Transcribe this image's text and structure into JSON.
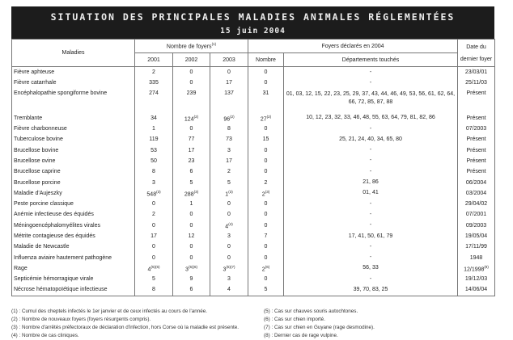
{
  "title": "SITUATION DES PRINCIPALES MALADIES ANIMALES RÉGLEMENTÉES",
  "date": "15 juin 2004",
  "headers": {
    "maladies": "Maladies",
    "nombre_foyers": "Nombre de foyers",
    "nombre_foyers_note": "(1)",
    "foyers_2004": "Foyers déclarés en 2004",
    "date_dernier": "Date du dernier foyer",
    "y2001": "2001",
    "y2002": "2002",
    "y2003": "2003",
    "nombre": "Nombre",
    "departements": "Départements touchés"
  },
  "rows": [
    {
      "name": "Fièvre aphteuse",
      "y2001": "2",
      "y2002": "0",
      "y2003": "0",
      "nombre": "0",
      "deps": "-",
      "date": "23/03/01"
    },
    {
      "name": "Fièvre catarrhale",
      "y2001": "335",
      "y2002": "0",
      "y2003": "17",
      "nombre": "0",
      "deps": "-",
      "date": "25/11/03"
    },
    {
      "name": "Encéphalopathie spongiforme bovine",
      "y2001": "274",
      "y2002": "239",
      "y2003": "137",
      "nombre": "31",
      "deps": "01, 03, 12, 15, 22, 23, 25, 29, 37, 43, 44, 46, 49, 53, 56, 61, 62, 64, 66, 72, 85, 87, 88",
      "date": "Présent"
    },
    {
      "name": "Tremblante",
      "y2001": "34",
      "y2002": "124",
      "y2002_note": "(2)",
      "y2003": "96",
      "y2003_note": "(2)",
      "nombre": "27",
      "nombre_note": "(2)",
      "deps": "10, 12, 23, 32, 33, 46, 48, 55, 63, 64, 79, 81, 82, 86",
      "date": "Présent"
    },
    {
      "name": "Fièvre charbonneuse",
      "y2001": "1",
      "y2002": "0",
      "y2003": "8",
      "nombre": "0",
      "deps": "-",
      "date": "07/2003"
    },
    {
      "name": "Tuberculose bovine",
      "y2001": "119",
      "y2002": "77",
      "y2003": "73",
      "nombre": "15",
      "deps": "25, 21, 24, 40, 34, 65, 80",
      "date": "Présent"
    },
    {
      "name": "Brucellose bovine",
      "y2001": "53",
      "y2002": "17",
      "y2003": "3",
      "nombre": "0",
      "deps": "-",
      "date": "Présent"
    },
    {
      "name": "Brucellose ovine",
      "y2001": "50",
      "y2002": "23",
      "y2003": "17",
      "nombre": "0",
      "deps": "-",
      "date": "Présent"
    },
    {
      "name": "Brucellose caprine",
      "y2001": "8",
      "y2002": "6",
      "y2003": "2",
      "nombre": "0",
      "deps": "-",
      "date": "Présent"
    },
    {
      "name": "Brucellose porcine",
      "y2001": "3",
      "y2002": "5",
      "y2003": "5",
      "nombre": "2",
      "deps": "21, 86",
      "date": "06/2004"
    },
    {
      "name": "Maladie d'Aujeszky",
      "y2001": "548",
      "y2001_note": "(3)",
      "y2002": "288",
      "y2002_note": "(3)",
      "y2003": "1",
      "y2003_note": "(3)",
      "nombre": "2",
      "nombre_note": "(3)",
      "deps": "01, 41",
      "date": "03/2004"
    },
    {
      "name": "Peste porcine classique",
      "y2001": "0",
      "y2002": "1",
      "y2003": "0",
      "nombre": "0",
      "deps": "-",
      "date": "29/04/02"
    },
    {
      "name": "Anémie infectieuse des équidés",
      "y2001": "2",
      "y2002": "0",
      "y2003": "0",
      "nombre": "0",
      "deps": "-",
      "date": "07/2001"
    },
    {
      "name": "Méningoencéphalomyélites virales",
      "y2001": "0",
      "y2002": "0",
      "y2003": "4",
      "y2003_note": "(4)",
      "nombre": "0",
      "deps": "-",
      "date": "09/2003"
    },
    {
      "name": "Métrite contagieuse des équidés",
      "y2001": "17",
      "y2002": "12",
      "y2003": "3",
      "nombre": "7",
      "deps": "17, 41, 50, 61, 79",
      "date": "19/05/04"
    },
    {
      "name": "Maladie de Newcastle",
      "y2001": "0",
      "y2002": "0",
      "y2003": "0",
      "nombre": "0",
      "deps": "-",
      "date": "17/11/99"
    },
    {
      "name": "Influenza aviaire hautement pathogène",
      "y2001": "0",
      "y2002": "0",
      "y2003": "0",
      "nombre": "0",
      "deps": "-",
      "date": "1948"
    },
    {
      "name": "Rage",
      "y2001": "4",
      "y2001_note": "(5)(6)",
      "y2002": "3",
      "y2002_note": "(5)(6)",
      "y2003": "3",
      "y2003_note": "(5)(7)",
      "nombre": "2",
      "nombre_note": "(6)",
      "deps": "56, 33",
      "date": "12/1998",
      "date_note": "(8)"
    },
    {
      "name": "Septicémie hémorragique virale",
      "y2001": "5",
      "y2002": "9",
      "y2003": "3",
      "nombre": "0",
      "deps": "-",
      "date": "19/12/03"
    },
    {
      "name": "Nécrose hématopoïétique infectieuse",
      "y2001": "8",
      "y2002": "6",
      "y2003": "4",
      "nombre": "5",
      "deps": "39, 70, 83, 25",
      "date": "14/06/04"
    }
  ],
  "footnotes_left": [
    "(1) : Cumul des cheptels infectés le 1er janvier et de ceux infectés au cours de l'année.",
    "(2) : Nombre de nouveaux foyers (foyers résurgents compris).",
    "(3) : Nombre d'arrêtés préfectoraux de déclaration d'infection, hors Corse où la maladie est présente.",
    "(4) : Nombre de cas cliniques."
  ],
  "footnotes_right": [
    "(5) : Cas sur chauves souris autochtones.",
    "(6) : Cas sur chien importé.",
    "(7) : Cas sur chien en Guyane (rage desmodine).",
    "(8) : Dernier cas de rage vulpine."
  ]
}
